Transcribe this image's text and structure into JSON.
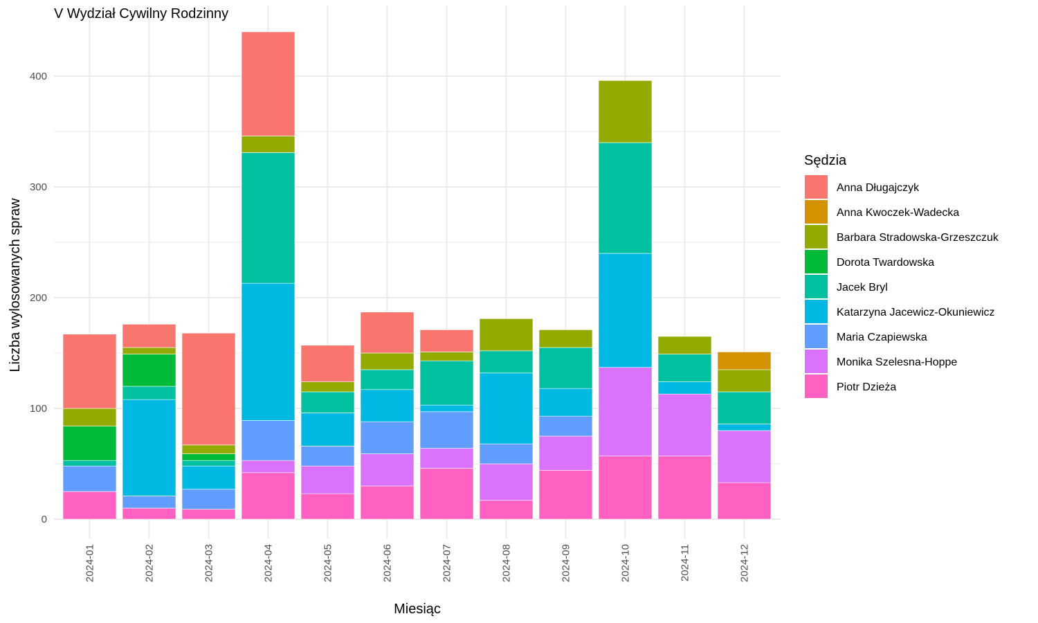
{
  "chart_data": {
    "type": "bar",
    "stacked": true,
    "title": "V Wydział Cywilny Rodzinny",
    "xlabel": "Miesiąc",
    "ylabel": "Liczba wylosowanych spraw",
    "ylim": [
      0,
      440
    ],
    "yticks": [
      0,
      100,
      200,
      300,
      400
    ],
    "grid": true,
    "legend_title": "Sędzia",
    "legend_position": "right",
    "categories": [
      "2024-01",
      "2024-02",
      "2024-03",
      "2024-04",
      "2024-05",
      "2024-06",
      "2024-07",
      "2024-08",
      "2024-09",
      "2024-10",
      "2024-11",
      "2024-12"
    ],
    "series": [
      {
        "name": "Anna Długajczyk",
        "color": "#F8766D",
        "values": [
          67,
          21,
          101,
          94,
          33,
          37,
          20,
          0,
          0,
          0,
          0,
          0
        ]
      },
      {
        "name": "Anna Kwoczek-Wadecka",
        "color": "#D39200",
        "values": [
          0,
          0,
          0,
          0,
          0,
          0,
          0,
          0,
          0,
          0,
          0,
          16
        ]
      },
      {
        "name": "Barbara Stradowska-Grzeszczuk",
        "color": "#93AA00",
        "values": [
          16,
          6,
          8,
          15,
          9,
          15,
          8,
          29,
          16,
          56,
          16,
          20
        ]
      },
      {
        "name": "Dorota Twardowska",
        "color": "#00BA38",
        "values": [
          31,
          29,
          6,
          0,
          0,
          0,
          0,
          0,
          0,
          0,
          0,
          0
        ]
      },
      {
        "name": "Jacek Bryl",
        "color": "#00C19F",
        "values": [
          5,
          12,
          5,
          118,
          19,
          18,
          40,
          20,
          37,
          100,
          25,
          29
        ]
      },
      {
        "name": "Katarzyna Jacewicz-Okuniewicz",
        "color": "#00B9E3",
        "values": [
          0,
          87,
          21,
          124,
          30,
          29,
          6,
          64,
          25,
          103,
          11,
          6
        ]
      },
      {
        "name": "Maria Czapiewska",
        "color": "#619CFF",
        "values": [
          23,
          11,
          18,
          36,
          18,
          29,
          33,
          18,
          18,
          0,
          0,
          0
        ]
      },
      {
        "name": "Monika Szelesna-Hoppe",
        "color": "#DB72FB",
        "values": [
          0,
          0,
          0,
          11,
          25,
          29,
          18,
          33,
          31,
          80,
          56,
          47
        ]
      },
      {
        "name": "Piotr Dzieża",
        "color": "#FF61C3",
        "values": [
          25,
          10,
          9,
          42,
          23,
          30,
          46,
          17,
          44,
          57,
          57,
          33
        ]
      }
    ]
  }
}
